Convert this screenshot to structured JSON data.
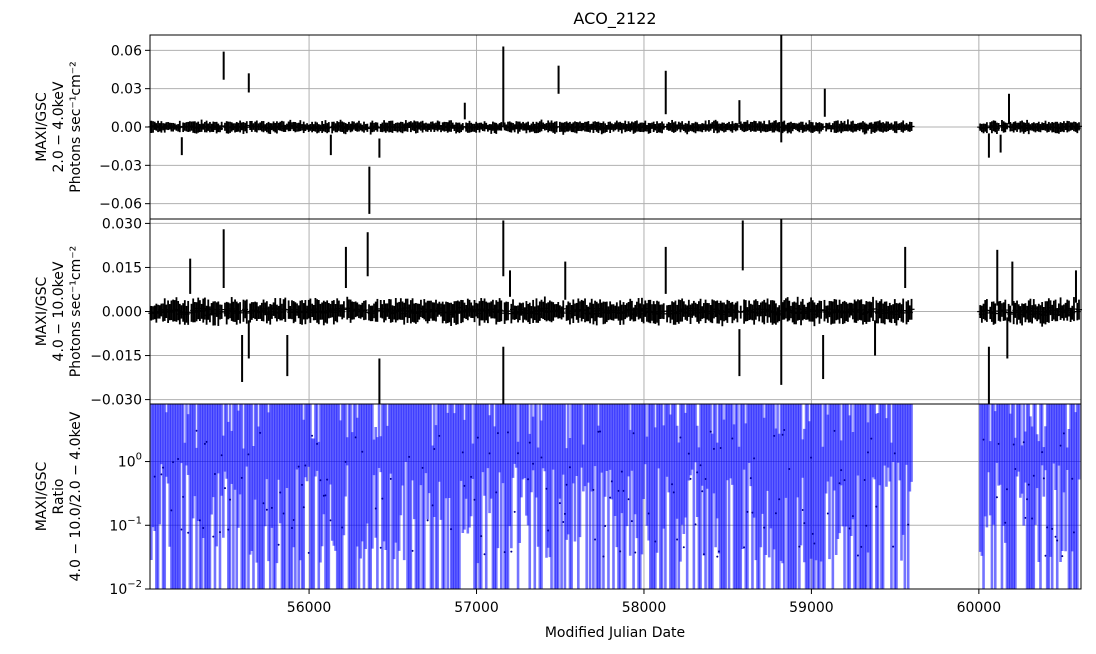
{
  "chart_data": {
    "title": "ACO_2122",
    "xlabel": "Modified Julian Date",
    "xlim": [
      55050,
      60610
    ],
    "x_ticks": [
      56000,
      57000,
      58000,
      59000,
      60000
    ],
    "grid": true,
    "data_gap_mjd": [
      59600,
      60000
    ],
    "panels": [
      {
        "type": "errorbar",
        "ylabel_lines": [
          "MAXI/GSC",
          "2.0 − 4.0keV",
          "Photons sec⁻¹cm⁻²"
        ],
        "ylim": [
          -0.072,
          0.072
        ],
        "y_ticks": [
          -0.06,
          -0.03,
          0.0,
          0.03,
          0.06
        ],
        "y_tick_labels": [
          "−0.06",
          "−0.03",
          "0.00",
          "0.03",
          "0.06"
        ],
        "color": "#000000",
        "bin_days": 10,
        "typical_err": 0.004,
        "spikes": [
          {
            "mjd": 55490,
            "low": 0.037,
            "high": 0.059
          },
          {
            "mjd": 55640,
            "low": 0.027,
            "high": 0.042
          },
          {
            "mjd": 55240,
            "low": -0.022,
            "high": -0.008
          },
          {
            "mjd": 56130,
            "low": -0.022,
            "high": -0.006
          },
          {
            "mjd": 56360,
            "low": -0.068,
            "high": -0.031
          },
          {
            "mjd": 56420,
            "low": -0.024,
            "high": -0.009
          },
          {
            "mjd": 56930,
            "low": 0.006,
            "high": 0.019
          },
          {
            "mjd": 57160,
            "low": 0.0,
            "high": 0.063
          },
          {
            "mjd": 57490,
            "low": 0.026,
            "high": 0.048
          },
          {
            "mjd": 58130,
            "low": 0.01,
            "high": 0.044
          },
          {
            "mjd": 58570,
            "low": 0.002,
            "high": 0.021
          },
          {
            "mjd": 58820,
            "low": -0.012,
            "high": 0.072
          },
          {
            "mjd": 59080,
            "low": 0.008,
            "high": 0.03
          },
          {
            "mjd": 60060,
            "low": -0.024,
            "high": -0.005
          },
          {
            "mjd": 60180,
            "low": 0.002,
            "high": 0.026
          },
          {
            "mjd": 60130,
            "low": -0.02,
            "high": -0.006
          }
        ]
      },
      {
        "type": "errorbar",
        "ylabel_lines": [
          "MAXI/GSC",
          "4.0 − 10.0keV",
          "Photons sec⁻¹cm⁻²"
        ],
        "ylim": [
          -0.0315,
          0.0315
        ],
        "y_ticks": [
          -0.03,
          -0.015,
          0.0,
          0.015,
          0.03
        ],
        "y_tick_labels": [
          "−0.030",
          "−0.015",
          "0.000",
          "0.015",
          "0.030"
        ],
        "color": "#000000",
        "bin_days": 10,
        "typical_err": 0.0035,
        "spikes": [
          {
            "mjd": 55290,
            "low": 0.006,
            "high": 0.018
          },
          {
            "mjd": 55490,
            "low": 0.008,
            "high": 0.028
          },
          {
            "mjd": 55600,
            "low": -0.024,
            "high": -0.008
          },
          {
            "mjd": 55640,
            "low": -0.016,
            "high": -0.003
          },
          {
            "mjd": 55870,
            "low": -0.022,
            "high": -0.008
          },
          {
            "mjd": 56350,
            "low": 0.012,
            "high": 0.027
          },
          {
            "mjd": 56420,
            "low": -0.032,
            "high": -0.016
          },
          {
            "mjd": 56220,
            "low": 0.008,
            "high": 0.022
          },
          {
            "mjd": 57160,
            "low": -0.032,
            "high": -0.012
          },
          {
            "mjd": 57160,
            "low": 0.012,
            "high": 0.031
          },
          {
            "mjd": 57200,
            "low": 0.005,
            "high": 0.014
          },
          {
            "mjd": 57530,
            "low": 0.004,
            "high": 0.017
          },
          {
            "mjd": 58130,
            "low": 0.006,
            "high": 0.022
          },
          {
            "mjd": 58570,
            "low": -0.022,
            "high": -0.006
          },
          {
            "mjd": 58590,
            "low": 0.014,
            "high": 0.031
          },
          {
            "mjd": 58820,
            "low": -0.025,
            "high": 0.0315
          },
          {
            "mjd": 59070,
            "low": -0.023,
            "high": -0.008
          },
          {
            "mjd": 59380,
            "low": -0.015,
            "high": -0.003
          },
          {
            "mjd": 59560,
            "low": 0.008,
            "high": 0.022
          },
          {
            "mjd": 60060,
            "low": -0.0315,
            "high": -0.012
          },
          {
            "mjd": 60110,
            "low": 0.002,
            "high": 0.021
          },
          {
            "mjd": 60170,
            "low": -0.016,
            "high": -0.002
          },
          {
            "mjd": 60200,
            "low": 0.002,
            "high": 0.017
          },
          {
            "mjd": 60580,
            "low": 0.003,
            "high": 0.014
          }
        ]
      },
      {
        "type": "errorbar",
        "yscale": "log",
        "ylabel_lines": [
          "MAXI/GSC",
          "Ratio",
          "4.0 − 10.0/2.0 − 4.0keV"
        ],
        "ylim": [
          0.01,
          8.0
        ],
        "y_ticks": [
          0.01,
          0.1,
          1.0
        ],
        "y_tick_labels": [
          "10",
          "10",
          "10"
        ],
        "y_tick_exponents": [
          "−2",
          "−1",
          "0"
        ],
        "color": "#0000ff",
        "bin_days": 10,
        "note": "error bars mostly span the full axis range; lower ends vary between ~0.01 and ~1"
      }
    ]
  }
}
